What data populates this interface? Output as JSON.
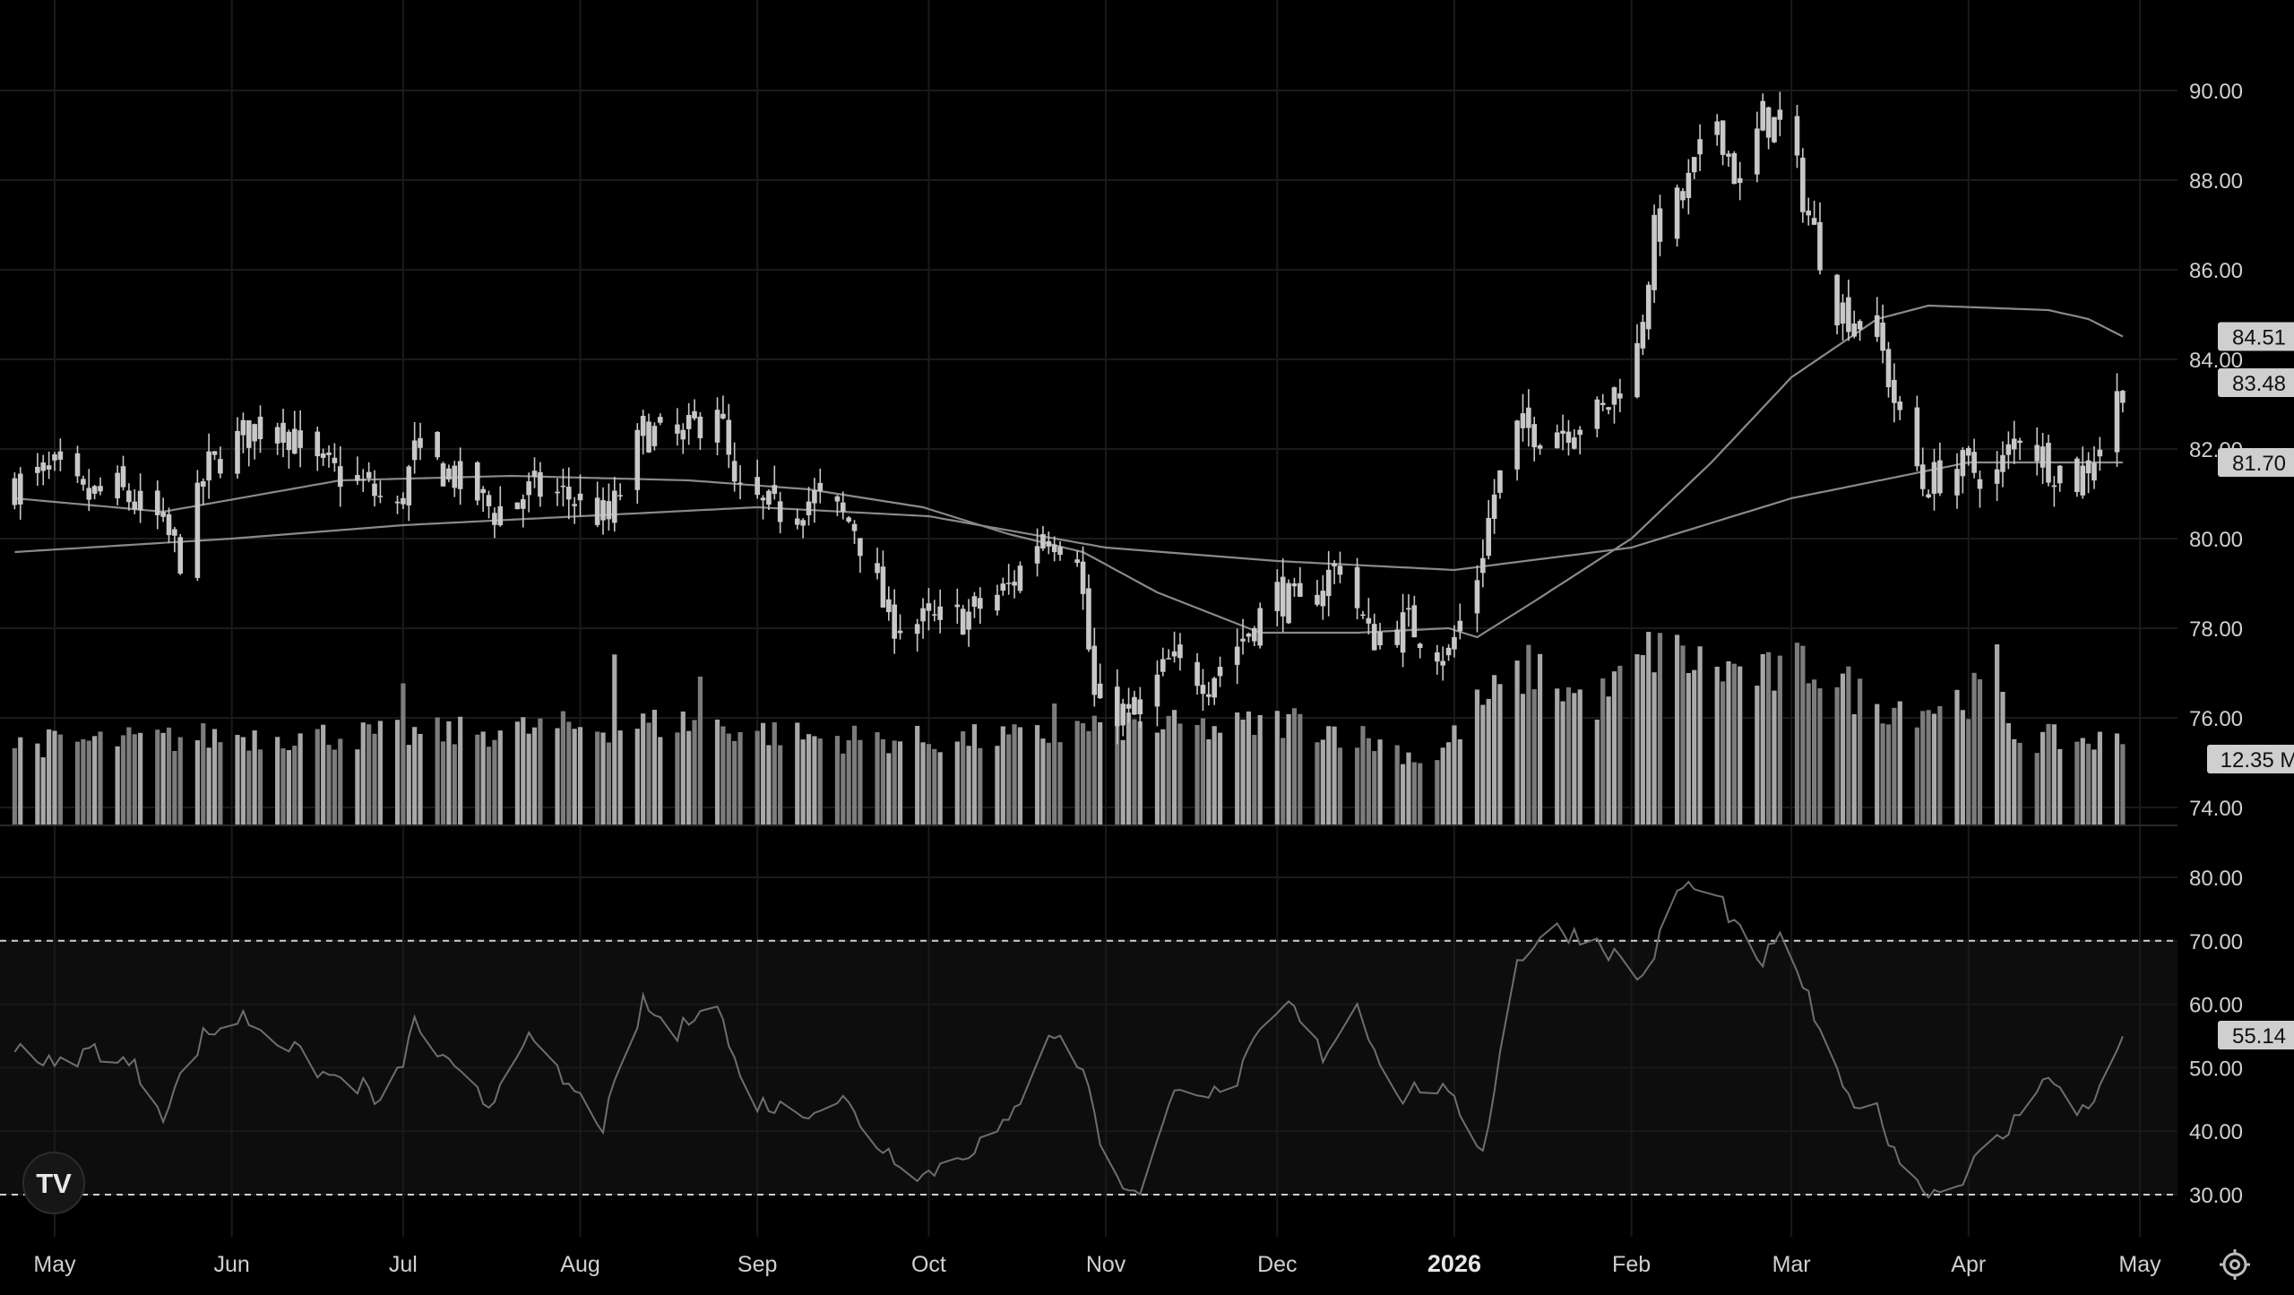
{
  "colors": {
    "background": "#000000",
    "grid": "#1a1a1a",
    "text": "#d0d0d0",
    "candle": "#c8c8c8",
    "volume": "#9a9a9a",
    "ma": "#8a8a8a",
    "rsi_line": "#6e6e6e",
    "rsi_band": "#0d0d0d",
    "badge_bg": "#cfcfcf"
  },
  "icons": {
    "logo": "tradingview-logo-icon",
    "settings": "gear-icon"
  },
  "logo_text": "TV",
  "chart_data": [
    {
      "type": "candlestick",
      "name_pane": "price",
      "ylim": [
        73.8,
        91.5
      ],
      "y_ticks": [
        "74.00",
        "76.00",
        "78.00",
        "80.00",
        "82.00",
        "84.00",
        "86.00",
        "88.00",
        "90.00"
      ],
      "x_tick_labels": [
        {
          "label": "May",
          "date": "2025-05-01",
          "bold": false
        },
        {
          "label": "Jun",
          "date": "2025-06-01",
          "bold": false
        },
        {
          "label": "Jul",
          "date": "2025-07-01",
          "bold": false
        },
        {
          "label": "Aug",
          "date": "2025-08-01",
          "bold": false
        },
        {
          "label": "Sep",
          "date": "2025-09-01",
          "bold": false
        },
        {
          "label": "Oct",
          "date": "2025-10-01",
          "bold": false
        },
        {
          "label": "Nov",
          "date": "2025-11-01",
          "bold": false
        },
        {
          "label": "Dec",
          "date": "2025-12-01",
          "bold": false
        },
        {
          "label": "2026",
          "date": "2026-01-01",
          "bold": true
        },
        {
          "label": "Feb",
          "date": "2026-02-01",
          "bold": false
        },
        {
          "label": "Mar",
          "date": "2026-03-01",
          "bold": false
        },
        {
          "label": "Apr",
          "date": "2026-04-01",
          "bold": false
        },
        {
          "label": "May",
          "date": "2026-05-01",
          "bold": false
        }
      ],
      "price_anchors": [
        [
          "2025-04-24",
          81.2
        ],
        [
          "2025-05-01",
          81.5
        ],
        [
          "2025-05-06",
          80.9
        ],
        [
          "2025-05-12",
          81.1
        ],
        [
          "2025-05-19",
          80.4
        ],
        [
          "2025-05-23",
          79.6
        ],
        [
          "2025-05-28",
          81.6
        ],
        [
          "2025-06-03",
          82.3
        ],
        [
          "2025-06-09",
          82.7
        ],
        [
          "2025-06-16",
          81.6
        ],
        [
          "2025-06-23",
          81.3
        ],
        [
          "2025-06-30",
          80.6
        ],
        [
          "2025-07-03",
          81.9
        ],
        [
          "2025-07-10",
          81.4
        ],
        [
          "2025-07-17",
          80.6
        ],
        [
          "2025-07-24",
          81.1
        ],
        [
          "2025-07-31",
          80.9
        ],
        [
          "2025-08-06",
          80.4
        ],
        [
          "2025-08-12",
          82.4
        ],
        [
          "2025-08-19",
          82.2
        ],
        [
          "2025-08-25",
          83.1
        ],
        [
          "2025-08-28",
          81.0
        ],
        [
          "2025-09-04",
          80.6
        ],
        [
          "2025-09-11",
          80.9
        ],
        [
          "2025-09-18",
          80.3
        ],
        [
          "2025-09-24",
          78.2
        ],
        [
          "2025-10-01",
          78.1
        ],
        [
          "2025-10-08",
          78.3
        ],
        [
          "2025-10-15",
          78.9
        ],
        [
          "2025-10-21",
          80.2
        ],
        [
          "2025-10-27",
          79.8
        ],
        [
          "2025-10-30",
          76.4
        ],
        [
          "2025-11-06",
          76.0
        ],
        [
          "2025-11-12",
          77.2
        ],
        [
          "2025-11-19",
          76.9
        ],
        [
          "2025-11-25",
          77.8
        ],
        [
          "2025-12-01",
          78.8
        ],
        [
          "2025-12-05",
          78.4
        ],
        [
          "2025-12-12",
          79.5
        ],
        [
          "2025-12-17",
          77.8
        ],
        [
          "2025-12-24",
          78.1
        ],
        [
          "2025-12-31",
          77.4
        ],
        [
          "2026-01-05",
          79.2
        ],
        [
          "2026-01-08",
          81.0
        ],
        [
          "2026-01-12",
          82.4
        ],
        [
          "2026-01-20",
          82.5
        ],
        [
          "2026-01-27",
          82.8
        ],
        [
          "2026-02-02",
          84.2
        ],
        [
          "2026-02-05",
          86.8
        ],
        [
          "2026-02-10",
          87.6
        ],
        [
          "2026-02-16",
          89.4
        ],
        [
          "2026-02-20",
          87.8
        ],
        [
          "2026-02-24",
          89.4
        ],
        [
          "2026-02-28",
          89.1
        ],
        [
          "2026-03-04",
          87.2
        ],
        [
          "2026-03-09",
          85.2
        ],
        [
          "2026-03-16",
          84.6
        ],
        [
          "2026-03-19",
          83.1
        ],
        [
          "2026-03-24",
          81.2
        ],
        [
          "2026-03-30",
          81.6
        ],
        [
          "2026-04-06",
          81.4
        ],
        [
          "2026-04-10",
          82.4
        ],
        [
          "2026-04-15",
          81.7
        ],
        [
          "2026-04-20",
          81.3
        ],
        [
          "2026-04-24",
          82.1
        ],
        [
          "2026-04-28",
          83.48
        ]
      ],
      "ma_fast": [
        [
          "2025-04-24",
          80.9
        ],
        [
          "2025-05-20",
          80.6
        ],
        [
          "2025-06-20",
          81.3
        ],
        [
          "2025-07-20",
          81.4
        ],
        [
          "2025-08-20",
          81.3
        ],
        [
          "2025-09-10",
          81.1
        ],
        [
          "2025-09-30",
          80.7
        ],
        [
          "2025-10-15",
          80.1
        ],
        [
          "2025-10-28",
          79.7
        ],
        [
          "2025-11-10",
          78.8
        ],
        [
          "2025-11-28",
          77.9
        ],
        [
          "2025-12-15",
          77.9
        ],
        [
          "2025-12-31",
          78.0
        ],
        [
          "2026-01-05",
          77.8
        ],
        [
          "2026-01-15",
          78.6
        ],
        [
          "2026-02-01",
          80.0
        ],
        [
          "2026-02-15",
          81.7
        ],
        [
          "2026-03-01",
          83.6
        ],
        [
          "2026-03-16",
          84.9
        ],
        [
          "2026-03-25",
          85.2
        ],
        [
          "2026-04-15",
          85.1
        ],
        [
          "2026-04-22",
          84.9
        ],
        [
          "2026-04-28",
          84.51
        ]
      ],
      "ma_slow": [
        [
          "2025-04-24",
          79.7
        ],
        [
          "2025-06-01",
          80.0
        ],
        [
          "2025-07-01",
          80.3
        ],
        [
          "2025-08-01",
          80.5
        ],
        [
          "2025-09-01",
          80.7
        ],
        [
          "2025-10-01",
          80.5
        ],
        [
          "2025-11-01",
          79.8
        ],
        [
          "2025-12-01",
          79.5
        ],
        [
          "2026-01-01",
          79.3
        ],
        [
          "2026-02-01",
          79.8
        ],
        [
          "2026-03-01",
          80.9
        ],
        [
          "2026-04-01",
          81.7
        ],
        [
          "2026-04-28",
          81.7
        ]
      ],
      "last_values": {
        "price": "83.48",
        "ma_fast": "84.51",
        "ma_slow": "81.70",
        "volume": "12.35 M"
      }
    },
    {
      "type": "bar",
      "name_pane": "volume",
      "unit": "M",
      "anchors": [
        [
          "2025-04-24",
          12
        ],
        [
          "2025-05-15",
          12.5
        ],
        [
          "2025-06-01",
          13.2
        ],
        [
          "2025-07-01",
          13.3
        ],
        [
          "2025-08-01",
          14.5
        ],
        [
          "2025-08-20",
          15.2
        ],
        [
          "2025-09-10",
          13.0
        ],
        [
          "2025-10-01",
          12.5
        ],
        [
          "2025-10-20",
          13.0
        ],
        [
          "2025-11-01",
          15.0
        ],
        [
          "2025-11-20",
          14.2
        ],
        [
          "2025-12-05",
          15.5
        ],
        [
          "2025-12-20",
          12.0
        ],
        [
          "2025-12-28",
          9.0
        ],
        [
          "2026-01-05",
          17.5
        ],
        [
          "2026-01-15",
          23.5
        ],
        [
          "2026-01-25",
          17.5
        ],
        [
          "2026-02-05",
          26.0
        ],
        [
          "2026-02-15",
          23.5
        ],
        [
          "2026-02-25",
          22.0
        ],
        [
          "2026-03-05",
          24.0
        ],
        [
          "2026-03-15",
          18.0
        ],
        [
          "2026-03-25",
          17.5
        ],
        [
          "2026-04-05",
          20.0
        ],
        [
          "2026-04-10",
          12.8
        ],
        [
          "2026-04-28",
          12.35
        ]
      ],
      "spikes": [
        [
          "2025-07-01",
          21
        ],
        [
          "2025-08-07",
          25.3
        ],
        [
          "2025-08-22",
          22.0
        ],
        [
          "2025-10-23",
          18
        ],
        [
          "2026-02-06",
          28.5
        ],
        [
          "2026-02-13",
          26.5
        ],
        [
          "2026-02-28",
          28.2
        ],
        [
          "2026-04-06",
          26.8
        ]
      ]
    },
    {
      "type": "line",
      "name_pane": "rsi",
      "ylim": [
        27.5,
        83.5
      ],
      "y_ticks": [
        "30.00",
        "40.00",
        "50.00",
        "60.00",
        "70.00",
        "80.00"
      ],
      "band": [
        30,
        70
      ],
      "anchors": [
        [
          "2025-04-24",
          54
        ],
        [
          "2025-05-01",
          50
        ],
        [
          "2025-05-08",
          53
        ],
        [
          "2025-05-15",
          50
        ],
        [
          "2025-05-20",
          43
        ],
        [
          "2025-05-27",
          55
        ],
        [
          "2025-06-03",
          58
        ],
        [
          "2025-06-10",
          54
        ],
        [
          "2025-06-17",
          49
        ],
        [
          "2025-06-24",
          47
        ],
        [
          "2025-06-28",
          43
        ],
        [
          "2025-07-03",
          57
        ],
        [
          "2025-07-09",
          50
        ],
        [
          "2025-07-16",
          44
        ],
        [
          "2025-07-22",
          55
        ],
        [
          "2025-07-29",
          48
        ],
        [
          "2025-08-05",
          41
        ],
        [
          "2025-08-12",
          60
        ],
        [
          "2025-08-18",
          55
        ],
        [
          "2025-08-24",
          63
        ],
        [
          "2025-08-30",
          45
        ],
        [
          "2025-09-08",
          43
        ],
        [
          "2025-09-16",
          45
        ],
        [
          "2025-09-22",
          38
        ],
        [
          "2025-09-30",
          33
        ],
        [
          "2025-10-08",
          37
        ],
        [
          "2025-10-15",
          41
        ],
        [
          "2025-10-22",
          56
        ],
        [
          "2025-10-28",
          50
        ],
        [
          "2025-11-02",
          32
        ],
        [
          "2025-11-07",
          31
        ],
        [
          "2025-11-14",
          48
        ],
        [
          "2025-11-22",
          45
        ],
        [
          "2025-11-28",
          55
        ],
        [
          "2025-12-03",
          60
        ],
        [
          "2025-12-09",
          52
        ],
        [
          "2025-12-15",
          60
        ],
        [
          "2025-12-22",
          45
        ],
        [
          "2025-12-28",
          48
        ],
        [
          "2026-01-03",
          42
        ],
        [
          "2026-01-06",
          37
        ],
        [
          "2026-01-12",
          67
        ],
        [
          "2026-01-18",
          72
        ],
        [
          "2026-01-26",
          70
        ],
        [
          "2026-02-03",
          64
        ],
        [
          "2026-02-10",
          79
        ],
        [
          "2026-02-17",
          76
        ],
        [
          "2026-02-23",
          66
        ],
        [
          "2026-02-28",
          71
        ],
        [
          "2026-03-05",
          58
        ],
        [
          "2026-03-10",
          46
        ],
        [
          "2026-03-16",
          43
        ],
        [
          "2026-03-22",
          32
        ],
        [
          "2026-03-28",
          30
        ],
        [
          "2026-04-03",
          36
        ],
        [
          "2026-04-08",
          40
        ],
        [
          "2026-04-14",
          49
        ],
        [
          "2026-04-20",
          43
        ],
        [
          "2026-04-25",
          47
        ],
        [
          "2026-04-28",
          55.14
        ]
      ],
      "last_value": "55.14"
    }
  ]
}
